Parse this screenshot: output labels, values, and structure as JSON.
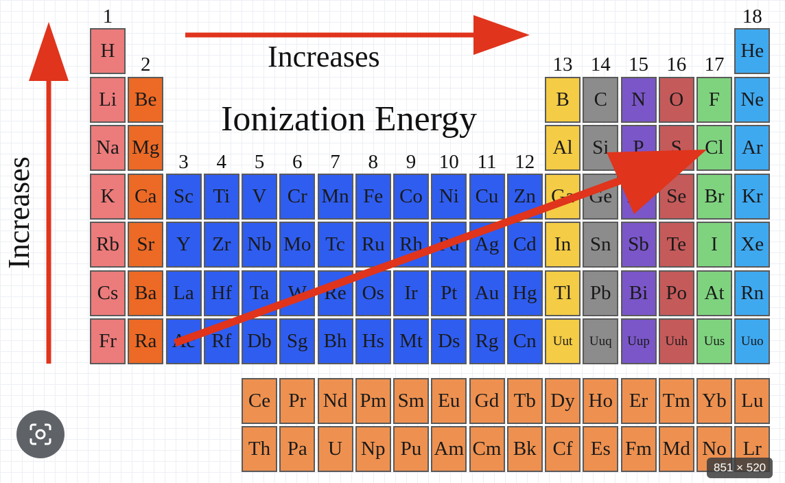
{
  "title": "Ionization Energy",
  "arrow_label_horizontal": "Increases",
  "arrow_label_vertical": "Increases",
  "size_badge": "851 × 520",
  "colors": {
    "alkali": "#ec7b7b",
    "alkaline": "#ec6a25",
    "transition": "#2f5df0",
    "post_transition": "#f4cc45",
    "metalloid": "#8c8c8c",
    "nonmetal": "#7a56c8",
    "chalcogen": "#c55a5a",
    "halogen": "#7fd37f",
    "noble": "#3fa9f0",
    "f_block": "#ee9150",
    "arrow": "#e0341c"
  },
  "group_labels": [
    "1",
    "2",
    "3",
    "4",
    "5",
    "6",
    "7",
    "8",
    "9",
    "10",
    "11",
    "12",
    "13",
    "14",
    "15",
    "16",
    "17",
    "18"
  ],
  "elements": [
    {
      "s": "H",
      "g": 1,
      "p": 1,
      "c": "alkali"
    },
    {
      "s": "He",
      "g": 18,
      "p": 1,
      "c": "noble"
    },
    {
      "s": "Li",
      "g": 1,
      "p": 2,
      "c": "alkali"
    },
    {
      "s": "Be",
      "g": 2,
      "p": 2,
      "c": "alkaline"
    },
    {
      "s": "B",
      "g": 13,
      "p": 2,
      "c": "post_transition"
    },
    {
      "s": "C",
      "g": 14,
      "p": 2,
      "c": "metalloid"
    },
    {
      "s": "N",
      "g": 15,
      "p": 2,
      "c": "nonmetal"
    },
    {
      "s": "O",
      "g": 16,
      "p": 2,
      "c": "chalcogen"
    },
    {
      "s": "F",
      "g": 17,
      "p": 2,
      "c": "halogen"
    },
    {
      "s": "Ne",
      "g": 18,
      "p": 2,
      "c": "noble"
    },
    {
      "s": "Na",
      "g": 1,
      "p": 3,
      "c": "alkali"
    },
    {
      "s": "Mg",
      "g": 2,
      "p": 3,
      "c": "alkaline"
    },
    {
      "s": "Al",
      "g": 13,
      "p": 3,
      "c": "post_transition"
    },
    {
      "s": "Si",
      "g": 14,
      "p": 3,
      "c": "metalloid"
    },
    {
      "s": "P",
      "g": 15,
      "p": 3,
      "c": "nonmetal"
    },
    {
      "s": "S",
      "g": 16,
      "p": 3,
      "c": "chalcogen"
    },
    {
      "s": "Cl",
      "g": 17,
      "p": 3,
      "c": "halogen"
    },
    {
      "s": "Ar",
      "g": 18,
      "p": 3,
      "c": "noble"
    },
    {
      "s": "K",
      "g": 1,
      "p": 4,
      "c": "alkali"
    },
    {
      "s": "Ca",
      "g": 2,
      "p": 4,
      "c": "alkaline"
    },
    {
      "s": "Sc",
      "g": 3,
      "p": 4,
      "c": "transition"
    },
    {
      "s": "Ti",
      "g": 4,
      "p": 4,
      "c": "transition"
    },
    {
      "s": "V",
      "g": 5,
      "p": 4,
      "c": "transition"
    },
    {
      "s": "Cr",
      "g": 6,
      "p": 4,
      "c": "transition"
    },
    {
      "s": "Mn",
      "g": 7,
      "p": 4,
      "c": "transition"
    },
    {
      "s": "Fe",
      "g": 8,
      "p": 4,
      "c": "transition"
    },
    {
      "s": "Co",
      "g": 9,
      "p": 4,
      "c": "transition"
    },
    {
      "s": "Ni",
      "g": 10,
      "p": 4,
      "c": "transition"
    },
    {
      "s": "Cu",
      "g": 11,
      "p": 4,
      "c": "transition"
    },
    {
      "s": "Zn",
      "g": 12,
      "p": 4,
      "c": "transition"
    },
    {
      "s": "Ga",
      "g": 13,
      "p": 4,
      "c": "post_transition"
    },
    {
      "s": "Ge",
      "g": 14,
      "p": 4,
      "c": "metalloid"
    },
    {
      "s": "As",
      "g": 15,
      "p": 4,
      "c": "nonmetal"
    },
    {
      "s": "Se",
      "g": 16,
      "p": 4,
      "c": "chalcogen"
    },
    {
      "s": "Br",
      "g": 17,
      "p": 4,
      "c": "halogen"
    },
    {
      "s": "Kr",
      "g": 18,
      "p": 4,
      "c": "noble"
    },
    {
      "s": "Rb",
      "g": 1,
      "p": 5,
      "c": "alkali"
    },
    {
      "s": "Sr",
      "g": 2,
      "p": 5,
      "c": "alkaline"
    },
    {
      "s": "Y",
      "g": 3,
      "p": 5,
      "c": "transition"
    },
    {
      "s": "Zr",
      "g": 4,
      "p": 5,
      "c": "transition"
    },
    {
      "s": "Nb",
      "g": 5,
      "p": 5,
      "c": "transition"
    },
    {
      "s": "Mo",
      "g": 6,
      "p": 5,
      "c": "transition"
    },
    {
      "s": "Tc",
      "g": 7,
      "p": 5,
      "c": "transition"
    },
    {
      "s": "Ru",
      "g": 8,
      "p": 5,
      "c": "transition"
    },
    {
      "s": "Rh",
      "g": 9,
      "p": 5,
      "c": "transition"
    },
    {
      "s": "Pd",
      "g": 10,
      "p": 5,
      "c": "transition"
    },
    {
      "s": "Ag",
      "g": 11,
      "p": 5,
      "c": "transition"
    },
    {
      "s": "Cd",
      "g": 12,
      "p": 5,
      "c": "transition"
    },
    {
      "s": "In",
      "g": 13,
      "p": 5,
      "c": "post_transition"
    },
    {
      "s": "Sn",
      "g": 14,
      "p": 5,
      "c": "metalloid"
    },
    {
      "s": "Sb",
      "g": 15,
      "p": 5,
      "c": "nonmetal"
    },
    {
      "s": "Te",
      "g": 16,
      "p": 5,
      "c": "chalcogen"
    },
    {
      "s": "I",
      "g": 17,
      "p": 5,
      "c": "halogen"
    },
    {
      "s": "Xe",
      "g": 18,
      "p": 5,
      "c": "noble"
    },
    {
      "s": "Cs",
      "g": 1,
      "p": 6,
      "c": "alkali"
    },
    {
      "s": "Ba",
      "g": 2,
      "p": 6,
      "c": "alkaline"
    },
    {
      "s": "La",
      "g": 3,
      "p": 6,
      "c": "transition"
    },
    {
      "s": "Hf",
      "g": 4,
      "p": 6,
      "c": "transition"
    },
    {
      "s": "Ta",
      "g": 5,
      "p": 6,
      "c": "transition"
    },
    {
      "s": "W",
      "g": 6,
      "p": 6,
      "c": "transition"
    },
    {
      "s": "Re",
      "g": 7,
      "p": 6,
      "c": "transition"
    },
    {
      "s": "Os",
      "g": 8,
      "p": 6,
      "c": "transition"
    },
    {
      "s": "Ir",
      "g": 9,
      "p": 6,
      "c": "transition"
    },
    {
      "s": "Pt",
      "g": 10,
      "p": 6,
      "c": "transition"
    },
    {
      "s": "Au",
      "g": 11,
      "p": 6,
      "c": "transition"
    },
    {
      "s": "Hg",
      "g": 12,
      "p": 6,
      "c": "transition"
    },
    {
      "s": "Tl",
      "g": 13,
      "p": 6,
      "c": "post_transition"
    },
    {
      "s": "Pb",
      "g": 14,
      "p": 6,
      "c": "metalloid"
    },
    {
      "s": "Bi",
      "g": 15,
      "p": 6,
      "c": "nonmetal"
    },
    {
      "s": "Po",
      "g": 16,
      "p": 6,
      "c": "chalcogen"
    },
    {
      "s": "At",
      "g": 17,
      "p": 6,
      "c": "halogen"
    },
    {
      "s": "Rn",
      "g": 18,
      "p": 6,
      "c": "noble"
    },
    {
      "s": "Fr",
      "g": 1,
      "p": 7,
      "c": "alkali"
    },
    {
      "s": "Ra",
      "g": 2,
      "p": 7,
      "c": "alkaline"
    },
    {
      "s": "Ac",
      "g": 3,
      "p": 7,
      "c": "transition"
    },
    {
      "s": "Rf",
      "g": 4,
      "p": 7,
      "c": "transition"
    },
    {
      "s": "Db",
      "g": 5,
      "p": 7,
      "c": "transition"
    },
    {
      "s": "Sg",
      "g": 6,
      "p": 7,
      "c": "transition"
    },
    {
      "s": "Bh",
      "g": 7,
      "p": 7,
      "c": "transition"
    },
    {
      "s": "Hs",
      "g": 8,
      "p": 7,
      "c": "transition"
    },
    {
      "s": "Mt",
      "g": 9,
      "p": 7,
      "c": "transition"
    },
    {
      "s": "Ds",
      "g": 10,
      "p": 7,
      "c": "transition"
    },
    {
      "s": "Rg",
      "g": 11,
      "p": 7,
      "c": "transition"
    },
    {
      "s": "Cn",
      "g": 12,
      "p": 7,
      "c": "transition"
    },
    {
      "s": "Uut",
      "g": 13,
      "p": 7,
      "c": "post_transition"
    },
    {
      "s": "Uuq",
      "g": 14,
      "p": 7,
      "c": "metalloid"
    },
    {
      "s": "Uup",
      "g": 15,
      "p": 7,
      "c": "nonmetal"
    },
    {
      "s": "Uuh",
      "g": 16,
      "p": 7,
      "c": "chalcogen"
    },
    {
      "s": "Uus",
      "g": 17,
      "p": 7,
      "c": "halogen"
    },
    {
      "s": "Uuo",
      "g": 18,
      "p": 7,
      "c": "noble"
    }
  ],
  "lanthanides": [
    "Ce",
    "Pr",
    "Nd",
    "Pm",
    "Sm",
    "Eu",
    "Gd",
    "Tb",
    "Dy",
    "Ho",
    "Er",
    "Tm",
    "Yb",
    "Lu"
  ],
  "actinides": [
    "Th",
    "Pa",
    "U",
    "Np",
    "Pu",
    "Am",
    "Cm",
    "Bk",
    "Cf",
    "Es",
    "Fm",
    "Md",
    "No",
    "Lr"
  ]
}
